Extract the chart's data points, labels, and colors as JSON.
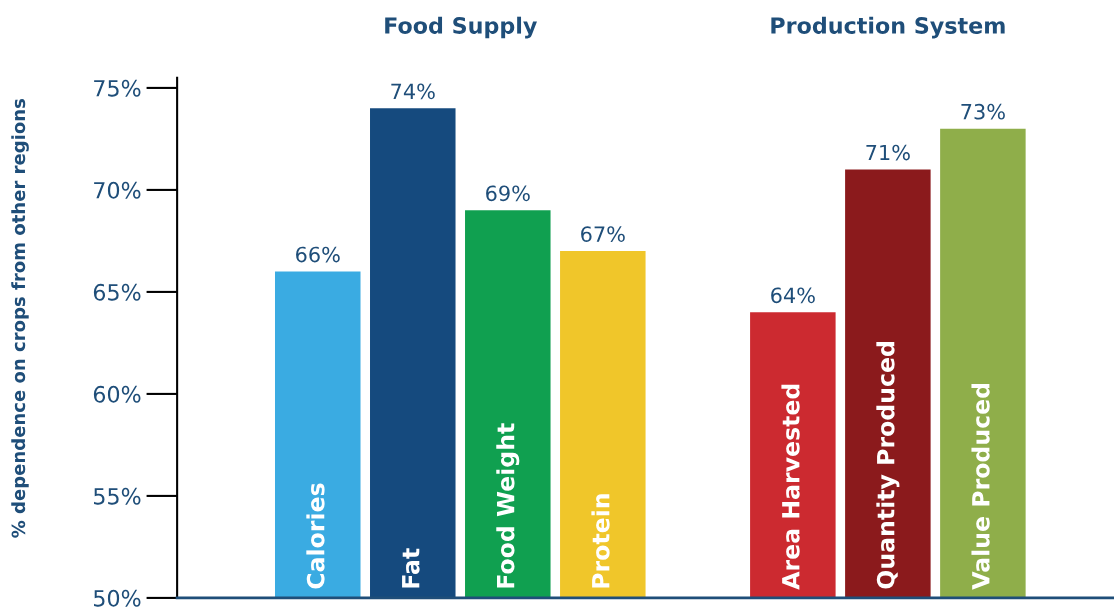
{
  "chart_data": {
    "type": "bar",
    "ylabel": "% dependence on crops from other regions",
    "categories": [
      "Calories",
      "Fat",
      "Food Weight",
      "Protein",
      null,
      "Area Harvested",
      "Quantity Produced",
      "Value Produced"
    ],
    "values": [
      66,
      74,
      69,
      67,
      null,
      64,
      71,
      73
    ],
    "colors": [
      "#3aabe2",
      "#154a7e",
      "#10a050",
      "#f0c62a",
      "#ffffff",
      "#cc2a30",
      "#8b1a1c",
      "#8fae4a"
    ],
    "value_labels": [
      "66%",
      "74%",
      "69%",
      "67%",
      null,
      "64%",
      "71%",
      "73%"
    ],
    "ylim": [
      50,
      75.5
    ],
    "yticks": [
      {
        "value": 50,
        "label": "50%"
      },
      {
        "value": 55,
        "label": "55%"
      },
      {
        "value": 60,
        "label": "60%"
      },
      {
        "value": 65,
        "label": "65%"
      },
      {
        "value": 70,
        "label": "70%"
      },
      {
        "value": 75,
        "label": "75%"
      }
    ],
    "annotations": [
      "Food Supply",
      "Production System"
    ],
    "grid": false,
    "legend": false
  }
}
